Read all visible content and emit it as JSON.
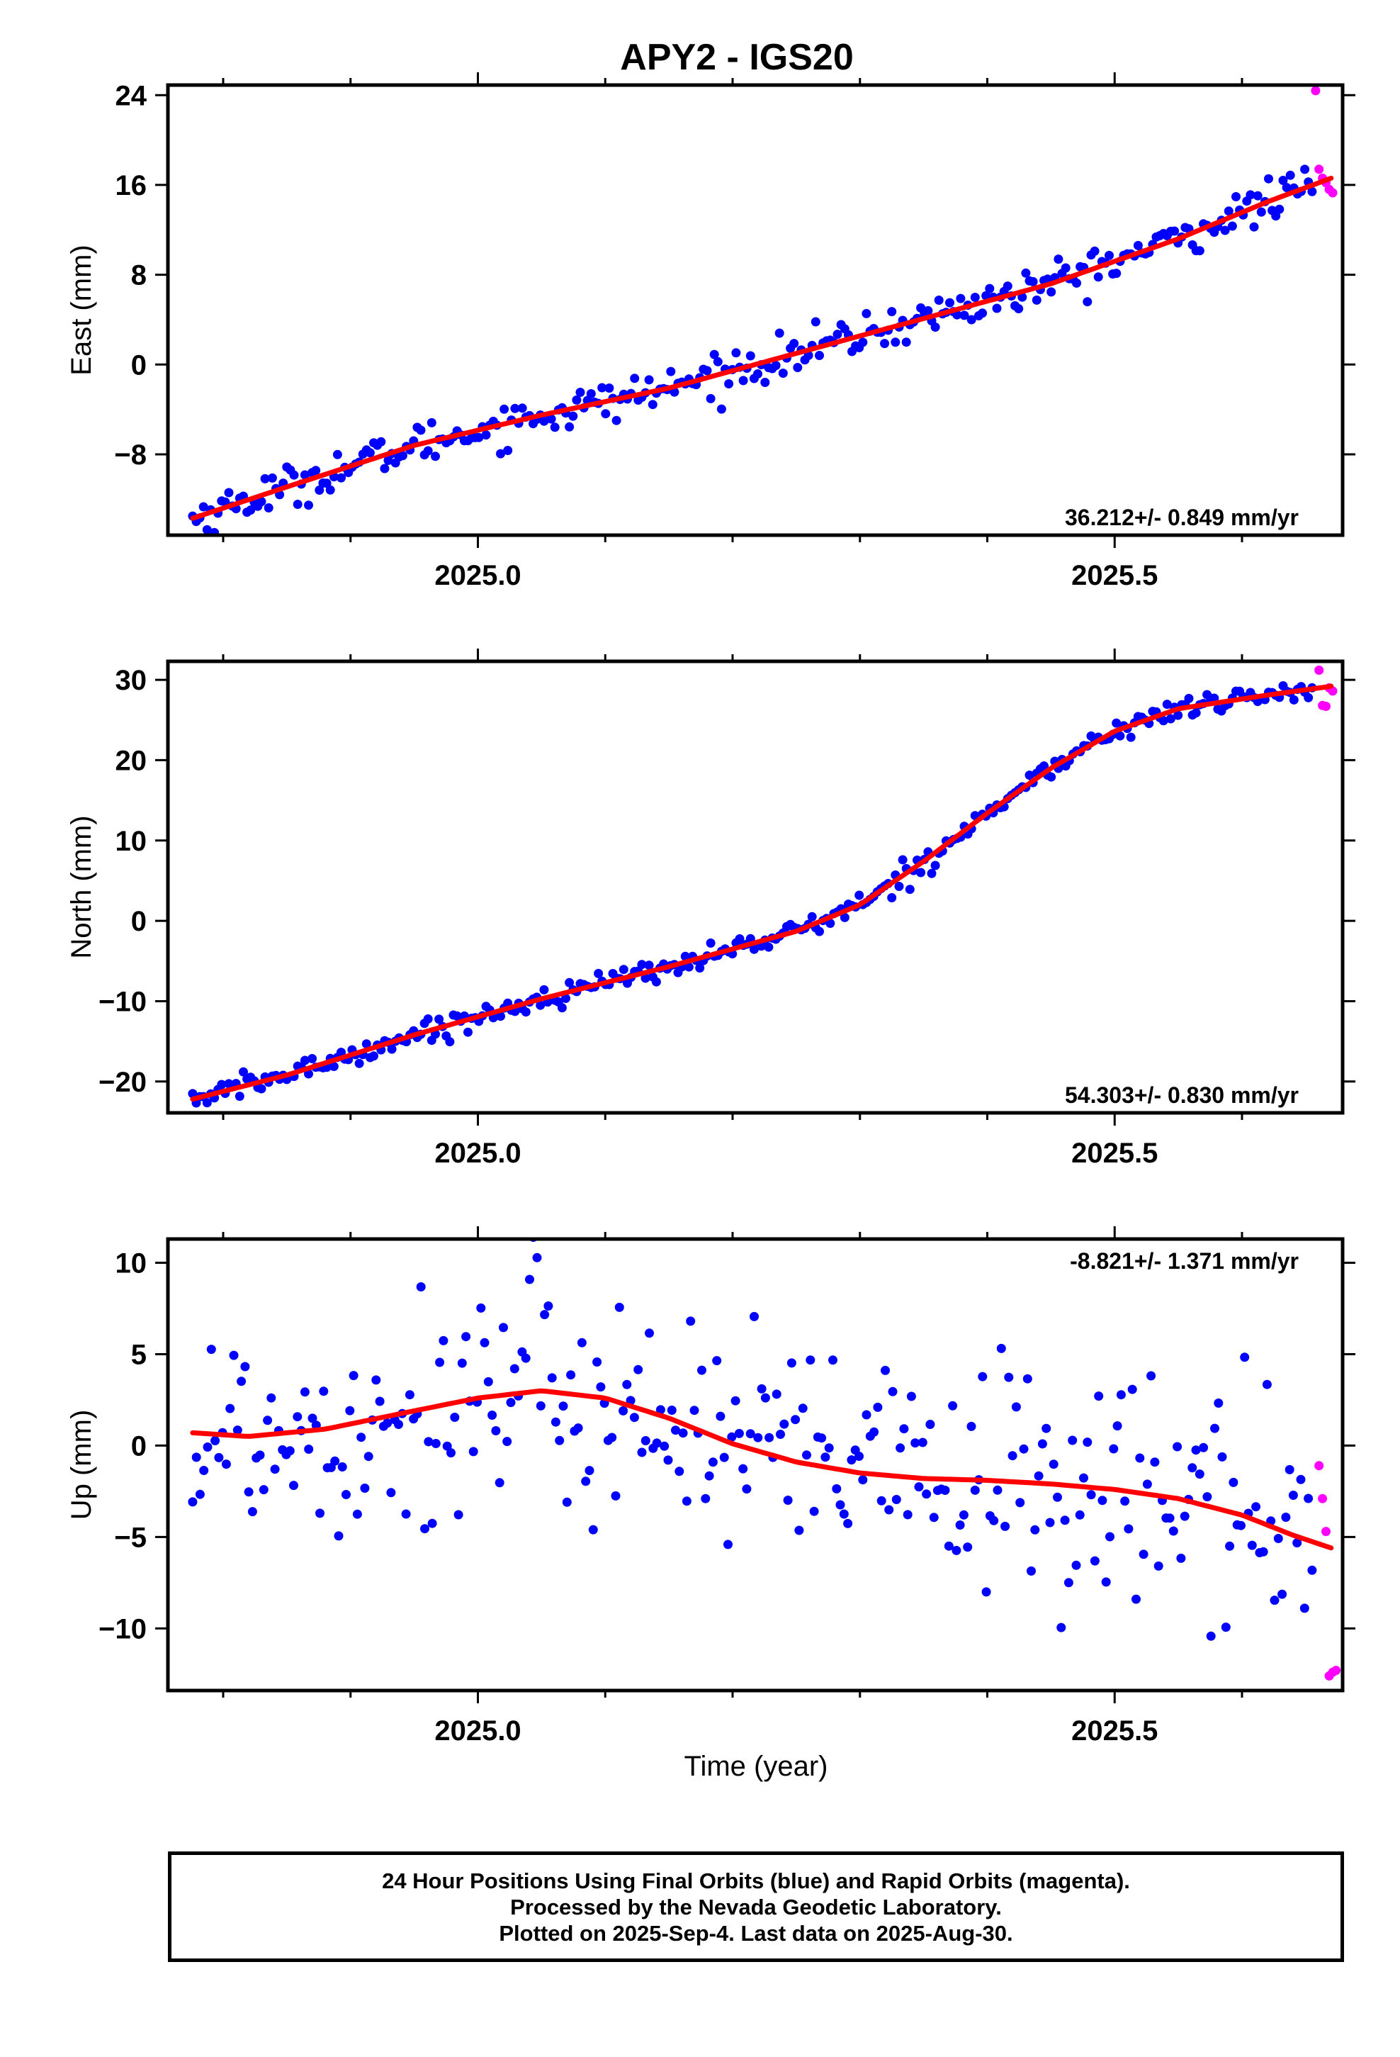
{
  "title": "APY2 - IGS20",
  "x_axis_label": "Time (year)",
  "footer": {
    "line1": "24 Hour Positions Using Final Orbits (blue) and Rapid Orbits (magenta).",
    "line2": "Processed by the Nevada Geodetic Laboratory.",
    "line3": "Plotted on 2025-Sep-4. Last data on 2025-Aug-30."
  },
  "colors": {
    "final": "#0000ff",
    "rapid": "#ff00ff",
    "model": "#ff0000",
    "frame": "#000000"
  },
  "chart_data": [
    {
      "type": "scatter",
      "panel": "east",
      "ylabel": "East (mm)",
      "xlim": [
        2024.7566,
        2025.679
      ],
      "ylim": [
        -15.2,
        24.9
      ],
      "yticks": [
        -8,
        0,
        8,
        16,
        24
      ],
      "xticks": [
        2025.0,
        2025.5
      ],
      "rate_text": "36.212+/- 0.849 mm/yr",
      "rate_position": "bottom-right",
      "final_start": 2024.776,
      "final_end": 2025.655,
      "final_count": 310,
      "rapid_points": [
        [
          2025.6578,
          24.4
        ],
        [
          2025.6605,
          17.4
        ],
        [
          2025.6632,
          16.6
        ],
        [
          2025.6659,
          16.2
        ],
        [
          2025.6685,
          15.6
        ],
        [
          2025.6712,
          15.3
        ]
      ],
      "model_knots": [
        [
          2024.776,
          -13.7
        ],
        [
          2024.85,
          -10.9
        ],
        [
          2024.95,
          -7.2
        ],
        [
          2025.05,
          -4.5
        ],
        [
          2025.15,
          -2.1
        ],
        [
          2025.25,
          1.0
        ],
        [
          2025.35,
          4.1
        ],
        [
          2025.45,
          7.2
        ],
        [
          2025.55,
          11.2
        ],
        [
          2025.62,
          14.5
        ],
        [
          2025.67,
          16.6
        ]
      ],
      "noise_sd": 0.9
    },
    {
      "type": "scatter",
      "panel": "north",
      "ylabel": "North (mm)",
      "xlim": [
        2024.7566,
        2025.679
      ],
      "ylim": [
        -23.9,
        32.3
      ],
      "yticks": [
        -20,
        -10,
        0,
        10,
        20,
        30
      ],
      "xticks": [
        2025.0,
        2025.5
      ],
      "rate_text": "54.303+/- 0.830 mm/yr",
      "rate_position": "bottom-right",
      "final_start": 2024.776,
      "final_end": 2025.655,
      "final_count": 310,
      "rapid_points": [
        [
          2025.6605,
          31.2
        ],
        [
          2025.6632,
          26.8
        ],
        [
          2025.6659,
          26.7
        ],
        [
          2025.6685,
          29.0
        ],
        [
          2025.6712,
          28.6
        ]
      ],
      "model_knots": [
        [
          2024.776,
          -22.2
        ],
        [
          2024.85,
          -19.2
        ],
        [
          2024.95,
          -14.2
        ],
        [
          2025.05,
          -9.7
        ],
        [
          2025.15,
          -5.7
        ],
        [
          2025.25,
          -1.3
        ],
        [
          2025.3,
          2.0
        ],
        [
          2025.35,
          7.4
        ],
        [
          2025.4,
          13.4
        ],
        [
          2025.45,
          19.0
        ],
        [
          2025.5,
          23.6
        ],
        [
          2025.55,
          26.4
        ],
        [
          2025.62,
          28.1
        ],
        [
          2025.67,
          29.2
        ]
      ],
      "noise_sd": 0.7
    },
    {
      "type": "scatter",
      "panel": "up",
      "ylabel": "Up (mm)",
      "xlim": [
        2024.7566,
        2025.679
      ],
      "ylim": [
        -13.4,
        11.3
      ],
      "yticks": [
        -10,
        -5,
        0,
        5,
        10
      ],
      "xticks": [
        2025.0,
        2025.5
      ],
      "rate_text": "-8.821+/- 1.371 mm/yr",
      "rate_position": "top-right",
      "final_start": 2024.776,
      "final_end": 2025.655,
      "final_count": 300,
      "rapid_points": [
        [
          2025.6605,
          -1.1
        ],
        [
          2025.6632,
          -2.9
        ],
        [
          2025.6659,
          -4.7
        ],
        [
          2025.6685,
          -12.6
        ],
        [
          2025.6712,
          -12.4
        ],
        [
          2025.6738,
          -12.3
        ]
      ],
      "model_knots": [
        [
          2024.776,
          0.7
        ],
        [
          2024.82,
          0.5
        ],
        [
          2024.88,
          0.9
        ],
        [
          2024.95,
          1.9
        ],
        [
          2025.0,
          2.6
        ],
        [
          2025.05,
          3.0
        ],
        [
          2025.1,
          2.6
        ],
        [
          2025.15,
          1.5
        ],
        [
          2025.2,
          0.1
        ],
        [
          2025.25,
          -0.9
        ],
        [
          2025.3,
          -1.5
        ],
        [
          2025.35,
          -1.8
        ],
        [
          2025.4,
          -1.9
        ],
        [
          2025.45,
          -2.1
        ],
        [
          2025.5,
          -2.4
        ],
        [
          2025.55,
          -2.9
        ],
        [
          2025.6,
          -3.8
        ],
        [
          2025.64,
          -4.9
        ],
        [
          2025.67,
          -5.6
        ]
      ],
      "noise_sd": 3.3
    }
  ]
}
